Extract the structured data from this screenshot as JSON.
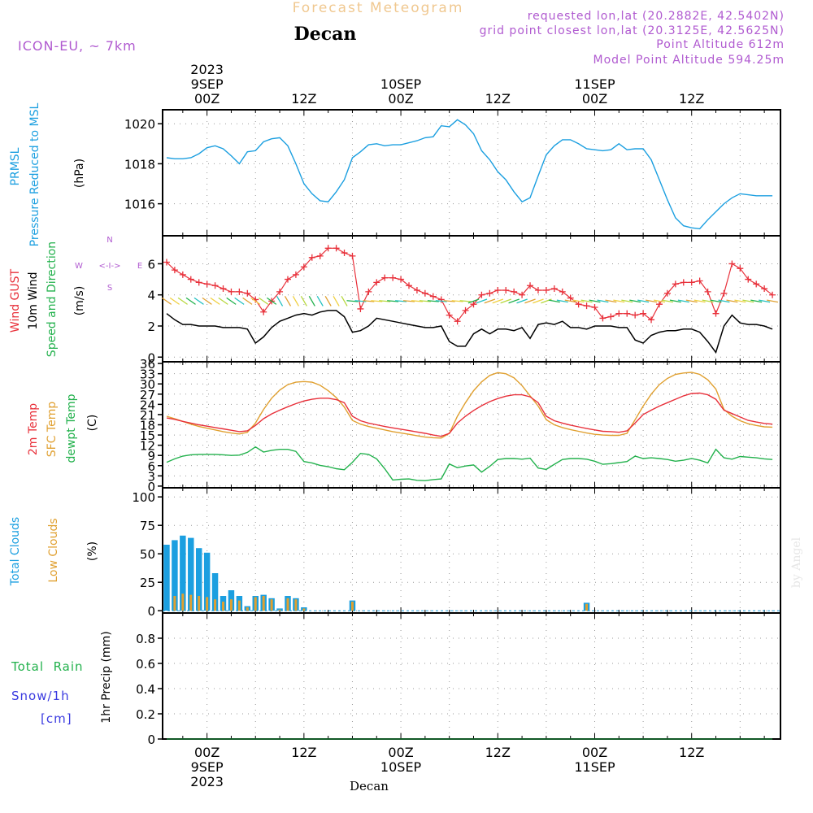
{
  "header": {
    "title": "Forecast Meteogram",
    "location": "Decan",
    "model": "ICON-EU, ~ 7km",
    "requested": "requested lon,lat (20.2882E, 42.5402N)",
    "gridpoint": "grid point closest lon,lat (20.3125E, 42.5625N)",
    "point_alt": "Point Altitude 612m",
    "model_alt": "Model Point Altitude 594.25m"
  },
  "time_axis": {
    "top_labels": [
      {
        "t": 0,
        "lines": [
          "2023",
          "9SEP",
          "00Z"
        ]
      },
      {
        "t": 12,
        "lines": [
          "12Z"
        ]
      },
      {
        "t": 24,
        "lines": [
          "10SEP",
          "00Z"
        ]
      },
      {
        "t": 36,
        "lines": [
          "12Z"
        ]
      },
      {
        "t": 48,
        "lines": [
          "11SEP",
          "00Z"
        ]
      },
      {
        "t": 60,
        "lines": [
          "12Z"
        ]
      }
    ],
    "bottom_labels": [
      {
        "t": 0,
        "lines": [
          "00Z",
          "9SEP",
          "2023"
        ]
      },
      {
        "t": 12,
        "lines": [
          "12Z"
        ]
      },
      {
        "t": 24,
        "lines": [
          "00Z",
          "10SEP"
        ]
      },
      {
        "t": 36,
        "lines": [
          "12Z"
        ]
      },
      {
        "t": 48,
        "lines": [
          "00Z",
          "11SEP"
        ]
      },
      {
        "t": 60,
        "lines": [
          "12Z"
        ]
      }
    ],
    "range": [
      -5.5,
      71
    ],
    "footer": "Decan"
  },
  "panels": {
    "pressure": {
      "labels": [
        "PRMSL",
        "Pressure Reduced to MSL"
      ],
      "unit": "(hPa)",
      "yticks": [
        1016,
        1018,
        1020
      ],
      "ylim": [
        1014.4,
        1020.7
      ],
      "colors": {
        "label": "#1b9fe0",
        "line": "#1b9fe0"
      }
    },
    "wind": {
      "labels": [
        "Wind GUST",
        "10m Wind",
        "Speed and Direction"
      ],
      "unit": "(m/s)",
      "compass": {
        "n": "N",
        "s": "S",
        "w": "W",
        "e": "E",
        "arrow": "<-I->"
      },
      "yticks": [
        0,
        2,
        4,
        6
      ],
      "ylim": [
        -0.3,
        7.8
      ],
      "colors": {
        "gust": "#e8303a",
        "wind": "#000000",
        "dir": "#22b14c",
        "compass": "#b05ad0"
      }
    },
    "temp": {
      "labels": [
        "2m Temp",
        "SFC Temp",
        "dewpt Temp"
      ],
      "unit": "(C)",
      "yticks": [
        0,
        3,
        6,
        9,
        12,
        15,
        18,
        21,
        24,
        27,
        30,
        33,
        36
      ],
      "ylim": [
        -0.5,
        36.5
      ],
      "colors": {
        "t2m": "#e8303a",
        "sfc": "#e0a030",
        "dew": "#22b14c"
      }
    },
    "clouds": {
      "labels": [
        "Total Clouds",
        "Low Clouds"
      ],
      "unit": "(%)",
      "yticks": [
        0,
        25,
        50,
        75,
        100
      ],
      "ylim": [
        -2,
        108
      ],
      "colors": {
        "total": "#1b9fe0",
        "low": "#e0a030"
      }
    },
    "precip": {
      "labels": [
        "Total  Rain",
        "Snow/1h",
        "[cm]"
      ],
      "unit": "1hr Precip (mm)",
      "yticks": [
        "0",
        "0.2",
        "0.4",
        "0.6",
        "0.8"
      ],
      "ylim": [
        0,
        1.0
      ],
      "colors": {
        "rain": "#22b14c",
        "snow": "#3a3ae0"
      }
    }
  },
  "watermark": "by Angel",
  "chart_data": [
    {
      "type": "line",
      "panel": "pressure",
      "ylabel": "(hPa)",
      "x": [
        -5,
        -4,
        -3,
        -2,
        -1,
        0,
        1,
        2,
        3,
        4,
        5,
        6,
        7,
        8,
        9,
        10,
        11,
        12,
        13,
        14,
        15,
        16,
        17,
        18,
        19,
        20,
        21,
        22,
        23,
        24,
        25,
        26,
        27,
        28,
        29,
        30,
        31,
        32,
        33,
        34,
        35,
        36,
        37,
        38,
        39,
        40,
        41,
        42,
        43,
        44,
        45,
        46,
        47,
        48,
        49,
        50,
        51,
        52,
        53,
        54,
        55,
        56,
        57,
        58,
        59,
        60,
        61,
        62,
        63,
        64,
        65,
        66,
        67,
        68,
        69,
        70
      ],
      "series": [
        {
          "values": [
            1018.3,
            1018.25,
            1018.25,
            1018.3,
            1018.5,
            1018.8,
            1018.9,
            1018.75,
            1018.4,
            1018.0,
            1018.6,
            1018.65,
            1019.1,
            1019.25,
            1019.3,
            1018.9,
            1018.0,
            1017.0,
            1016.5,
            1016.15,
            1016.1,
            1016.6,
            1017.2,
            1018.3,
            1018.6,
            1018.95,
            1019.0,
            1018.9,
            1018.95,
            1018.95,
            1019.05,
            1019.15,
            1019.3,
            1019.35,
            1019.9,
            1019.85,
            1020.2,
            1019.95,
            1019.5,
            1018.65,
            1018.2,
            1017.6,
            1017.2,
            1016.6,
            1016.1,
            1016.3,
            1017.4,
            1018.45,
            1018.9,
            1019.2,
            1019.2,
            1019.0,
            1018.75,
            1018.7,
            1018.65,
            1018.7,
            1019.0,
            1018.7,
            1018.75,
            1018.75,
            1018.2,
            1017.2,
            1016.2,
            1015.3,
            1014.9,
            1014.8,
            1014.75,
            1015.2,
            1015.6,
            1016.0,
            1016.3,
            1016.5,
            1016.45,
            1016.4,
            1016.4,
            1016.4
          ]
        }
      ],
      "ylim": [
        1014.4,
        1020.7
      ]
    },
    {
      "type": "line",
      "panel": "wind",
      "ylabel": "(m/s)",
      "x": [
        -5,
        -4,
        -3,
        -2,
        -1,
        0,
        1,
        2,
        3,
        4,
        5,
        6,
        7,
        8,
        9,
        10,
        11,
        12,
        13,
        14,
        15,
        16,
        17,
        18,
        19,
        20,
        21,
        22,
        23,
        24,
        25,
        26,
        27,
        28,
        29,
        30,
        31,
        32,
        33,
        34,
        35,
        36,
        37,
        38,
        39,
        40,
        41,
        42,
        43,
        44,
        45,
        46,
        47,
        48,
        49,
        50,
        51,
        52,
        53,
        54,
        55,
        56,
        57,
        58,
        59,
        60,
        61,
        62,
        63,
        64,
        65,
        66,
        67,
        68,
        69,
        70
      ],
      "series": [
        {
          "name": "Wind GUST",
          "values": [
            6.1,
            5.6,
            5.3,
            5.0,
            4.8,
            4.7,
            4.6,
            4.4,
            4.2,
            4.2,
            4.1,
            3.7,
            2.9,
            3.6,
            4.2,
            5.0,
            5.3,
            5.8,
            6.4,
            6.5,
            7.0,
            7.0,
            6.7,
            6.5,
            3.1,
            4.2,
            4.8,
            5.1,
            5.1,
            5.0,
            4.6,
            4.3,
            4.1,
            3.9,
            3.7,
            2.7,
            2.3,
            3.0,
            3.4,
            4.0,
            4.1,
            4.3,
            4.3,
            4.2,
            4.0,
            4.6,
            4.3,
            4.3,
            4.4,
            4.2,
            3.8,
            3.4,
            3.3,
            3.2,
            2.5,
            2.6,
            2.8,
            2.8,
            2.7,
            2.8,
            2.4,
            3.4,
            4.1,
            4.7,
            4.8,
            4.8,
            4.9,
            4.2,
            2.8,
            4.1,
            6.0,
            5.7,
            5.0,
            4.7,
            4.4,
            4.0
          ]
        },
        {
          "name": "10m Wind",
          "values": [
            2.8,
            2.4,
            2.1,
            2.1,
            2.0,
            2.0,
            2.0,
            1.9,
            1.9,
            1.9,
            1.8,
            0.9,
            1.3,
            1.9,
            2.3,
            2.5,
            2.7,
            2.8,
            2.7,
            2.9,
            3.0,
            3.0,
            2.6,
            1.6,
            1.7,
            2.0,
            2.5,
            2.4,
            2.3,
            2.2,
            2.1,
            2.0,
            1.9,
            1.9,
            2.0,
            1.0,
            0.7,
            0.7,
            1.5,
            1.8,
            1.5,
            1.8,
            1.8,
            1.7,
            1.9,
            1.2,
            2.1,
            2.2,
            2.1,
            2.3,
            1.9,
            1.9,
            1.8,
            2.0,
            2.0,
            2.0,
            1.9,
            1.9,
            1.1,
            0.9,
            1.4,
            1.6,
            1.7,
            1.7,
            1.8,
            1.8,
            1.6,
            1.0,
            0.3,
            2.0,
            2.7,
            2.2,
            2.1,
            2.1,
            2.0,
            1.8
          ]
        }
      ],
      "ylim": [
        -0.3,
        7.8
      ]
    },
    {
      "type": "line",
      "panel": "temp",
      "ylabel": "(C)",
      "x": [
        -5,
        -4,
        -3,
        -2,
        -1,
        0,
        1,
        2,
        3,
        4,
        5,
        6,
        7,
        8,
        9,
        10,
        11,
        12,
        13,
        14,
        15,
        16,
        17,
        18,
        19,
        20,
        21,
        22,
        23,
        24,
        25,
        26,
        27,
        28,
        29,
        30,
        31,
        32,
        33,
        34,
        35,
        36,
        37,
        38,
        39,
        40,
        41,
        42,
        43,
        44,
        45,
        46,
        47,
        48,
        49,
        50,
        51,
        52,
        53,
        54,
        55,
        56,
        57,
        58,
        59,
        60,
        61,
        62,
        63,
        64,
        65,
        66,
        67,
        68,
        69,
        70
      ],
      "series": [
        {
          "name": "2m Temp",
          "values": [
            20,
            19.6,
            19,
            18.5,
            18,
            17.6,
            17.2,
            16.8,
            16.4,
            16,
            16.2,
            17.8,
            19.8,
            21.2,
            22.3,
            23.3,
            24.2,
            25,
            25.5,
            25.8,
            25.8,
            25.4,
            24.5,
            20.5,
            19.2,
            18.5,
            18,
            17.5,
            17.1,
            16.7,
            16.3,
            15.9,
            15.5,
            15,
            14.6,
            15.5,
            18.5,
            20.5,
            22.2,
            23.6,
            24.8,
            25.7,
            26.4,
            26.8,
            26.8,
            26.2,
            24.5,
            20.5,
            19.2,
            18.5,
            17.9,
            17.4,
            16.9,
            16.5,
            16.1,
            16.0,
            15.8,
            16.2,
            18.5,
            21,
            22.3,
            23.5,
            24.5,
            25.5,
            26.5,
            27.2,
            27.3,
            26.8,
            25.5,
            22.3,
            21.3,
            20.3,
            19.3,
            18.8,
            18.4,
            18.2
          ]
        },
        {
          "name": "SFC Temp",
          "values": [
            20.5,
            19.8,
            19,
            18.2,
            17.5,
            17.0,
            16.5,
            16,
            15.6,
            15.3,
            15.8,
            18.5,
            22.5,
            25.8,
            28.2,
            29.8,
            30.5,
            30.7,
            30.5,
            29.6,
            28,
            26,
            23.2,
            19.3,
            18.2,
            17.5,
            17,
            16.5,
            16,
            15.6,
            15.2,
            14.8,
            14.4,
            14.2,
            14.1,
            15.5,
            20.5,
            24.5,
            28,
            30.6,
            32.5,
            33.3,
            33,
            31.8,
            29.5,
            26.5,
            23.5,
            19.5,
            18,
            17.2,
            16.6,
            16.1,
            15.6,
            15.2,
            15,
            14.9,
            14.9,
            15.5,
            19.5,
            23.5,
            27,
            29.8,
            31.6,
            32.8,
            33.2,
            33.4,
            32.8,
            31.2,
            28.5,
            22.5,
            20.5,
            19.2,
            18.3,
            17.8,
            17.4,
            17.3
          ]
        },
        {
          "name": "dewpt Temp",
          "values": [
            7,
            8,
            8.8,
            9.2,
            9.3,
            9.3,
            9.3,
            9.2,
            9.0,
            9.1,
            9.9,
            11.5,
            10,
            10.5,
            10.8,
            10.8,
            10.2,
            7.2,
            6.8,
            6.1,
            5.7,
            5.1,
            4.8,
            7.0,
            9.6,
            9.3,
            8.0,
            5.1,
            1.8,
            2.0,
            2.1,
            1.7,
            1.6,
            1.9,
            2.1,
            6.5,
            5.4,
            5.9,
            6.2,
            4.1,
            5.8,
            7.8,
            8.1,
            8.1,
            7.9,
            8.2,
            5.3,
            4.9,
            6.4,
            7.8,
            8.1,
            8.1,
            7.9,
            7.3,
            6.4,
            6.6,
            6.9,
            7.2,
            8.8,
            8.1,
            8.3,
            8.1,
            7.8,
            7.3,
            7.6,
            8.1,
            7.6,
            6.8,
            10.8,
            8.3,
            7.9,
            8.7,
            8.5,
            8.3,
            8.0,
            7.8
          ]
        }
      ],
      "ylim": [
        -0.5,
        36.5
      ]
    },
    {
      "type": "bar",
      "panel": "clouds",
      "ylabel": "(%)",
      "x": [
        -5,
        -4,
        -3,
        -2,
        -1,
        0,
        1,
        2,
        3,
        4,
        5,
        6,
        7,
        8,
        9,
        10,
        11,
        12,
        18,
        47
      ],
      "series": [
        {
          "name": "Total Clouds",
          "values": [
            58,
            62,
            66,
            64,
            55,
            51,
            33,
            13,
            18,
            13,
            4,
            13,
            14,
            11,
            2,
            13,
            11,
            3,
            9,
            7
          ]
        },
        {
          "name": "Low Clouds",
          "values": [
            0,
            13,
            15,
            14,
            13,
            12,
            10,
            8,
            10,
            9,
            3,
            12,
            13,
            10,
            1,
            11,
            10,
            2,
            8,
            6
          ]
        }
      ],
      "ylim": [
        -2,
        108
      ]
    },
    {
      "type": "line",
      "panel": "precip",
      "ylabel": "1hr Precip (mm)",
      "x": [
        -5,
        70
      ],
      "series": [
        {
          "name": "Total  Rain",
          "values": [
            0,
            0
          ]
        }
      ],
      "ylim": [
        0,
        1.0
      ]
    }
  ]
}
